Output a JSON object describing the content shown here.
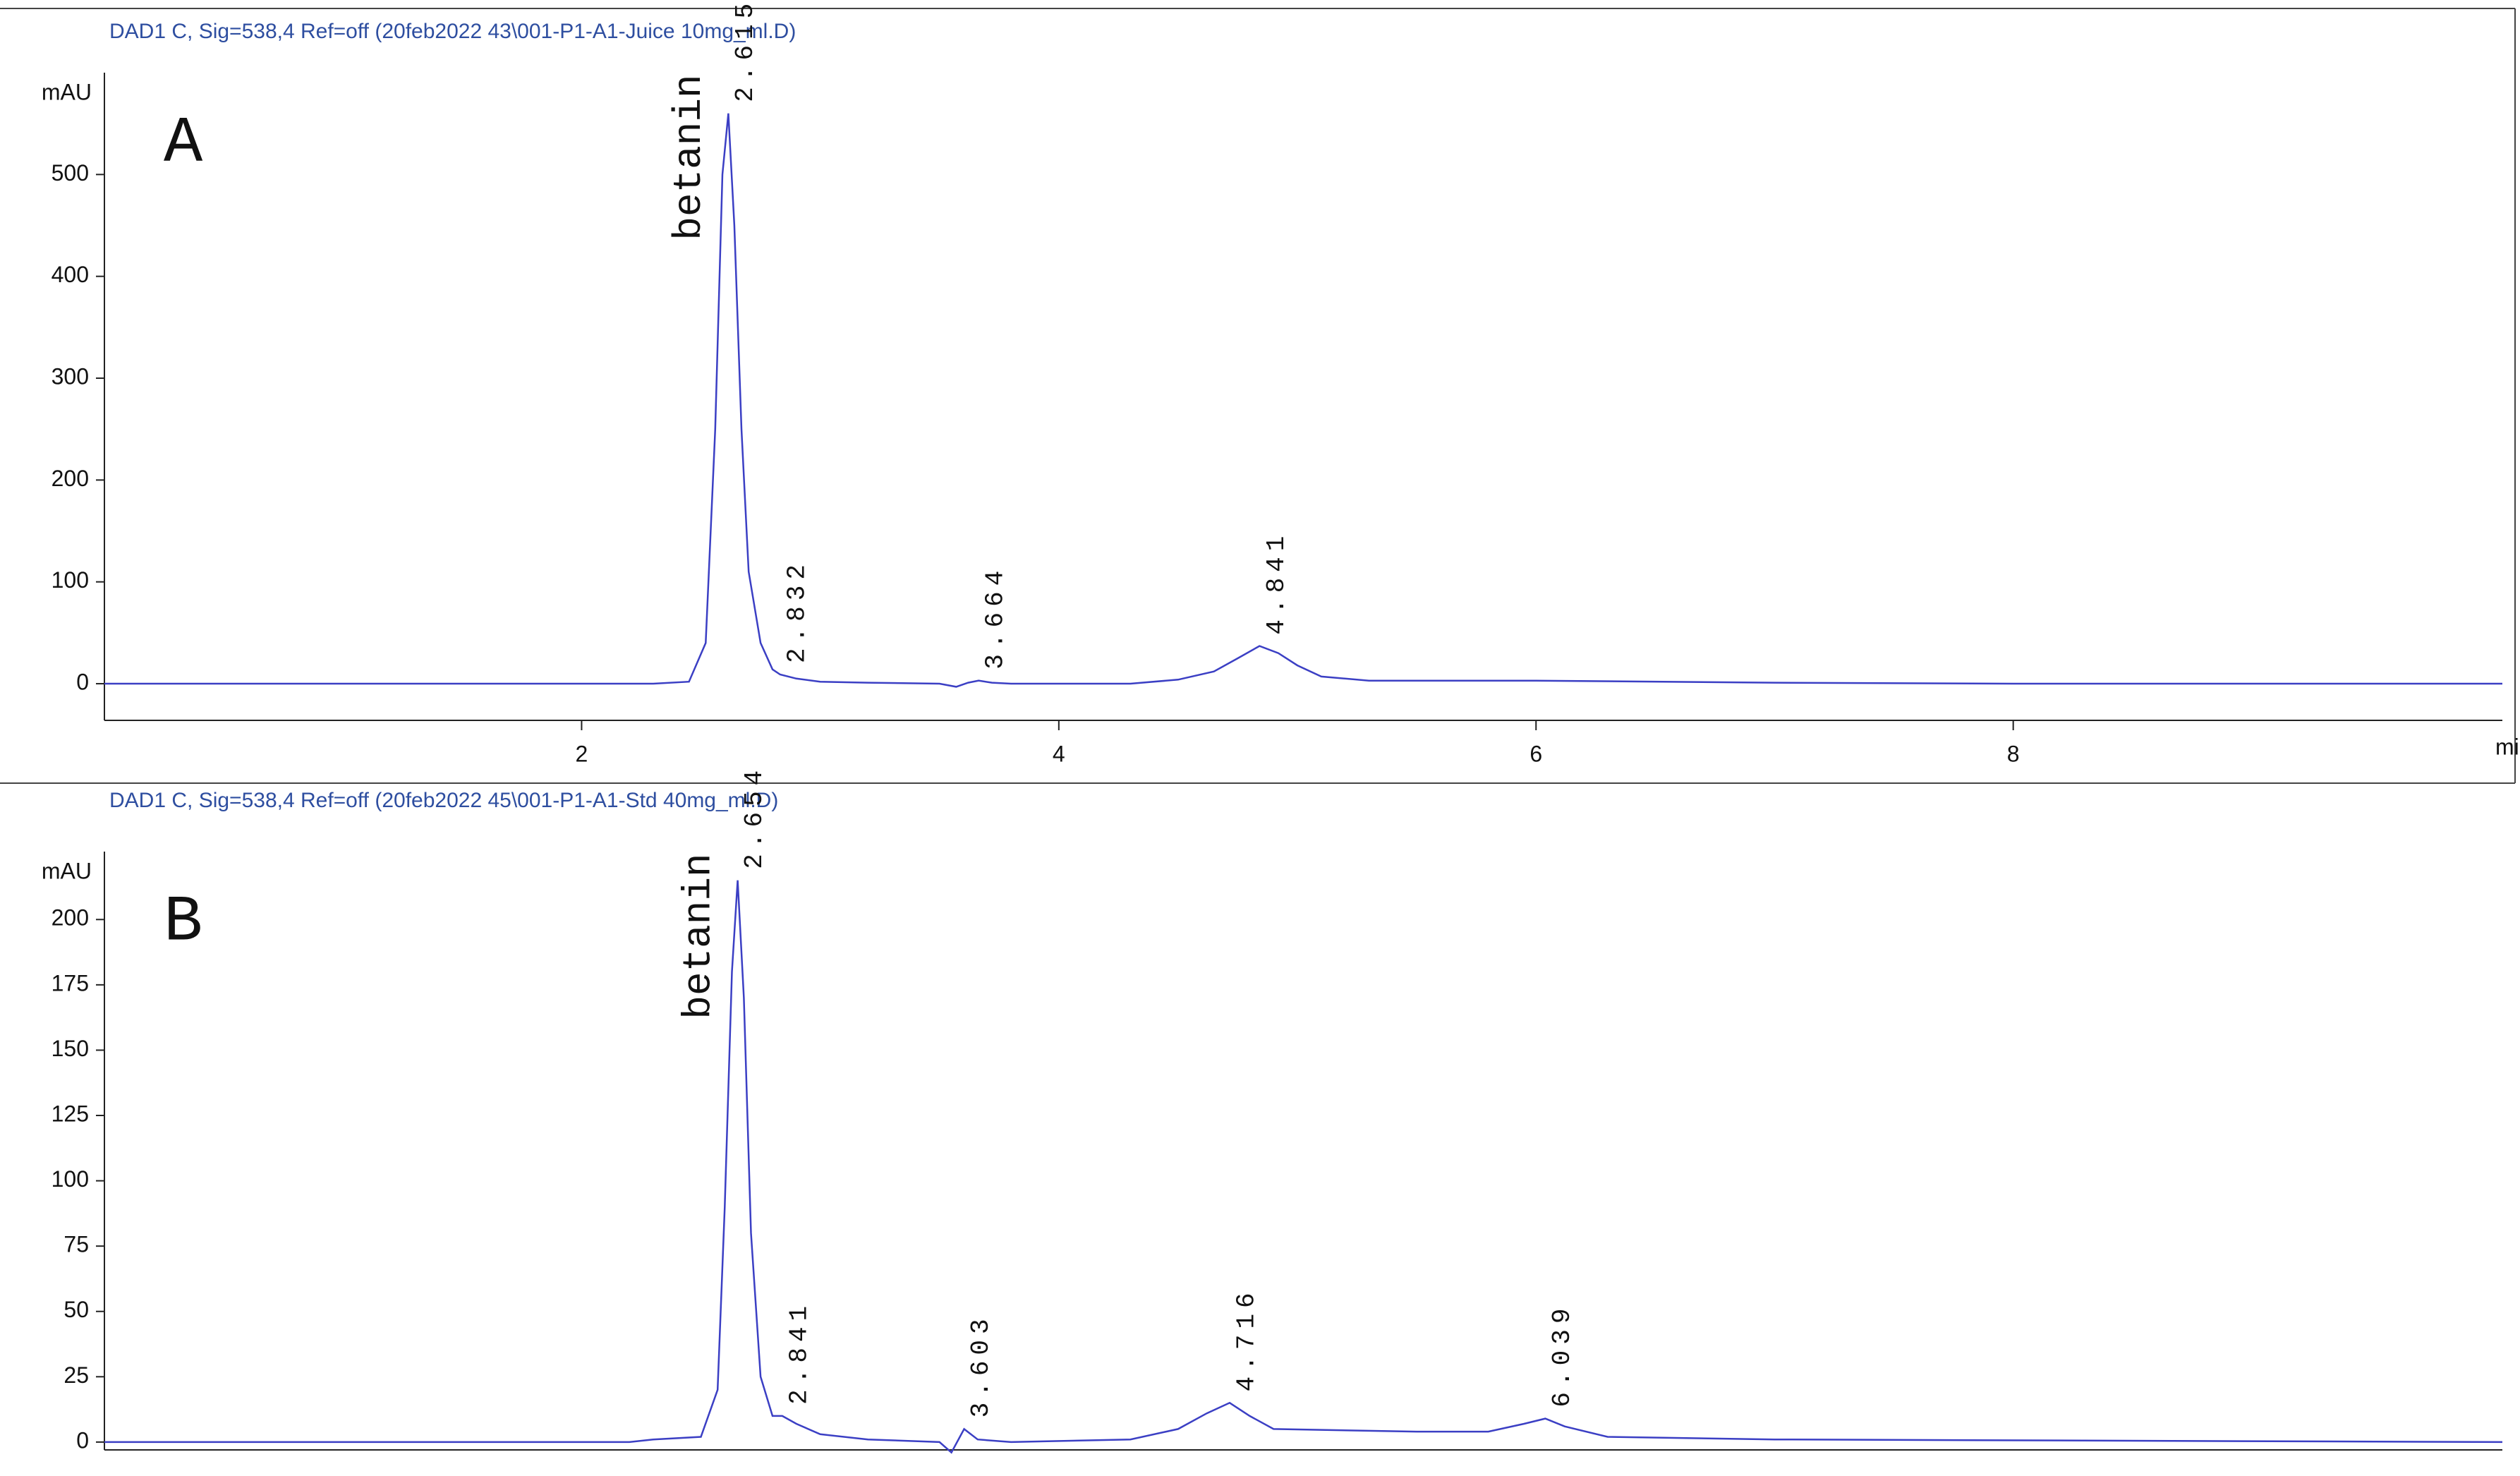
{
  "chart_data": [
    {
      "type": "line",
      "title": "DAD1 C, Sig=538,4 Ref=off (20feb2022 43\\001-P1-A1-Juice 10mg_ml.D)",
      "panel": "A",
      "ylabel": "mAU",
      "xlabel": "min",
      "compound": "betanin",
      "color": "#3b3fc4",
      "x": [
        0,
        1,
        2,
        2.3,
        2.45,
        2.52,
        2.56,
        2.59,
        2.615,
        2.64,
        2.67,
        2.7,
        2.75,
        2.8,
        2.832,
        2.9,
        3.0,
        3.2,
        3.5,
        3.57,
        3.62,
        3.664,
        3.72,
        3.8,
        4.3,
        4.5,
        4.65,
        4.75,
        4.841,
        4.92,
        5.0,
        5.1,
        5.3,
        6.0,
        7.0,
        8.0,
        10.05
      ],
      "values": [
        0,
        0,
        0,
        0,
        2,
        40,
        250,
        500,
        560,
        450,
        250,
        110,
        40,
        14,
        9,
        5,
        2,
        1,
        0,
        -3,
        1,
        3,
        1,
        0,
        0,
        4,
        12,
        25,
        37,
        30,
        18,
        7,
        3,
        3,
        1,
        0,
        0
      ],
      "xlim": [
        0,
        10.05
      ],
      "ylim": [
        -36,
        600
      ],
      "xticks": [
        2,
        4,
        6,
        8
      ],
      "yticks": [
        0,
        100,
        200,
        300,
        400,
        500
      ],
      "peaks": [
        2.615,
        2.832,
        3.664,
        4.841
      ]
    },
    {
      "type": "line",
      "title": "DAD1 C, Sig=538,4 Ref=off (20feb2022 45\\001-P1-A1-Std 40mg_ml.D)",
      "panel": "B",
      "ylabel": "mAU",
      "compound": "betanin",
      "color": "#3b3fc4",
      "x": [
        0,
        2.2,
        2.3,
        2.5,
        2.57,
        2.6,
        2.63,
        2.654,
        2.68,
        2.71,
        2.75,
        2.8,
        2.841,
        2.9,
        3.0,
        3.2,
        3.5,
        3.55,
        3.603,
        3.66,
        3.8,
        4.3,
        4.5,
        4.62,
        4.716,
        4.8,
        4.9,
        5.5,
        5.8,
        5.95,
        6.039,
        6.12,
        6.3,
        7.0,
        10.05
      ],
      "values": [
        0,
        0,
        1,
        2,
        20,
        90,
        180,
        215,
        170,
        80,
        25,
        10,
        10,
        7,
        3,
        1,
        0,
        -4,
        5,
        1,
        0,
        1,
        5,
        11,
        15,
        10,
        5,
        4,
        4,
        7,
        9,
        6,
        2,
        1,
        0
      ],
      "xlim": [
        0,
        10.05
      ],
      "ylim": [
        -3,
        226
      ],
      "yticks": [
        0,
        25,
        50,
        75,
        100,
        125,
        150,
        175,
        200
      ],
      "peaks": [
        2.654,
        2.841,
        3.603,
        4.716,
        6.039
      ]
    }
  ]
}
